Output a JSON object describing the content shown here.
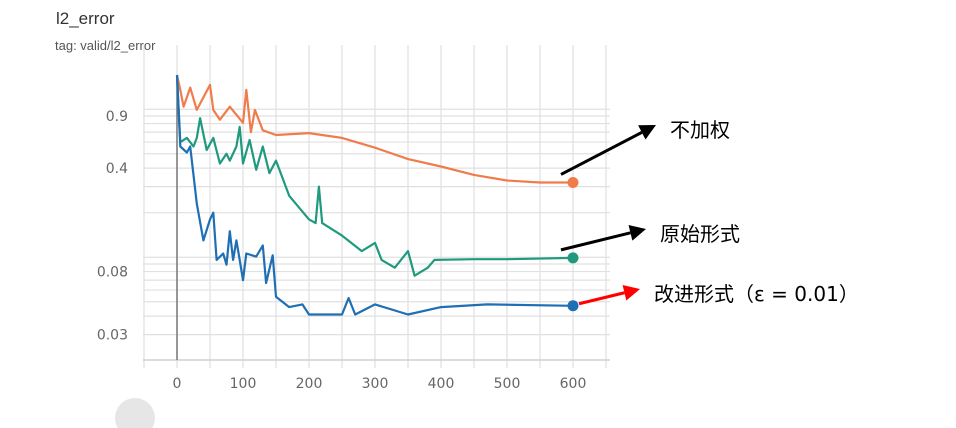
{
  "chart_data": {
    "type": "line",
    "title": "l2_error",
    "subtitle": "tag: valid/l2_error",
    "xlabel": "",
    "ylabel": "",
    "xlim": [
      -50,
      655
    ],
    "ylim": [
      0.02,
      1.7
    ],
    "yscale": "log",
    "grid": true,
    "x_ticks": [
      "0",
      "100",
      "200",
      "300",
      "400",
      "500",
      "600"
    ],
    "y_ticks": [
      "0.9",
      "0.4",
      "0.08",
      "0.03"
    ],
    "series": [
      {
        "name": "不加权",
        "color": "#f07c4c",
        "arrow_color": "#000000",
        "x": [
          0,
          5,
          10,
          20,
          30,
          50,
          55,
          65,
          80,
          100,
          105,
          112,
          118,
          130,
          150,
          200,
          250,
          300,
          350,
          400,
          450,
          500,
          550,
          600
        ],
        "y": [
          1.7,
          1.35,
          1.04,
          1.4,
          0.99,
          1.46,
          0.99,
          0.85,
          1.04,
          0.81,
          1.35,
          0.7,
          0.99,
          0.72,
          0.67,
          0.69,
          0.64,
          0.55,
          0.46,
          0.41,
          0.36,
          0.33,
          0.32,
          0.32
        ]
      },
      {
        "name": "原始形式",
        "color": "#1f9a7e",
        "arrow_color": "#000000",
        "x": [
          0,
          5,
          15,
          25,
          30,
          35,
          45,
          55,
          65,
          75,
          80,
          90,
          95,
          100,
          110,
          120,
          130,
          140,
          150,
          170,
          200,
          210,
          215,
          220,
          250,
          280,
          300,
          310,
          330,
          350,
          360,
          380,
          390,
          450,
          500,
          600
        ],
        "y": [
          1.7,
          0.6,
          0.64,
          0.56,
          0.64,
          0.87,
          0.53,
          0.64,
          0.43,
          0.5,
          0.45,
          0.56,
          0.76,
          0.43,
          0.62,
          0.39,
          0.56,
          0.37,
          0.45,
          0.26,
          0.18,
          0.17,
          0.3,
          0.17,
          0.14,
          0.11,
          0.125,
          0.096,
          0.085,
          0.11,
          0.075,
          0.085,
          0.096,
          0.097,
          0.097,
          0.099
        ]
      },
      {
        "name": "改进形式（ε = 0.01）",
        "color": "#1f6fb4",
        "arrow_color": "#ff0000",
        "x": [
          0,
          5,
          15,
          20,
          30,
          40,
          50,
          55,
          60,
          70,
          75,
          80,
          85,
          90,
          95,
          100,
          105,
          120,
          130,
          135,
          145,
          150,
          170,
          190,
          200,
          250,
          260,
          270,
          300,
          350,
          400,
          470,
          600
        ],
        "y": [
          1.7,
          0.56,
          0.51,
          0.56,
          0.23,
          0.13,
          0.18,
          0.2,
          0.096,
          0.106,
          0.089,
          0.15,
          0.096,
          0.13,
          0.096,
          0.07,
          0.106,
          0.101,
          0.12,
          0.067,
          0.103,
          0.054,
          0.046,
          0.048,
          0.041,
          0.041,
          0.053,
          0.041,
          0.048,
          0.041,
          0.046,
          0.048,
          0.047
        ]
      }
    ]
  }
}
